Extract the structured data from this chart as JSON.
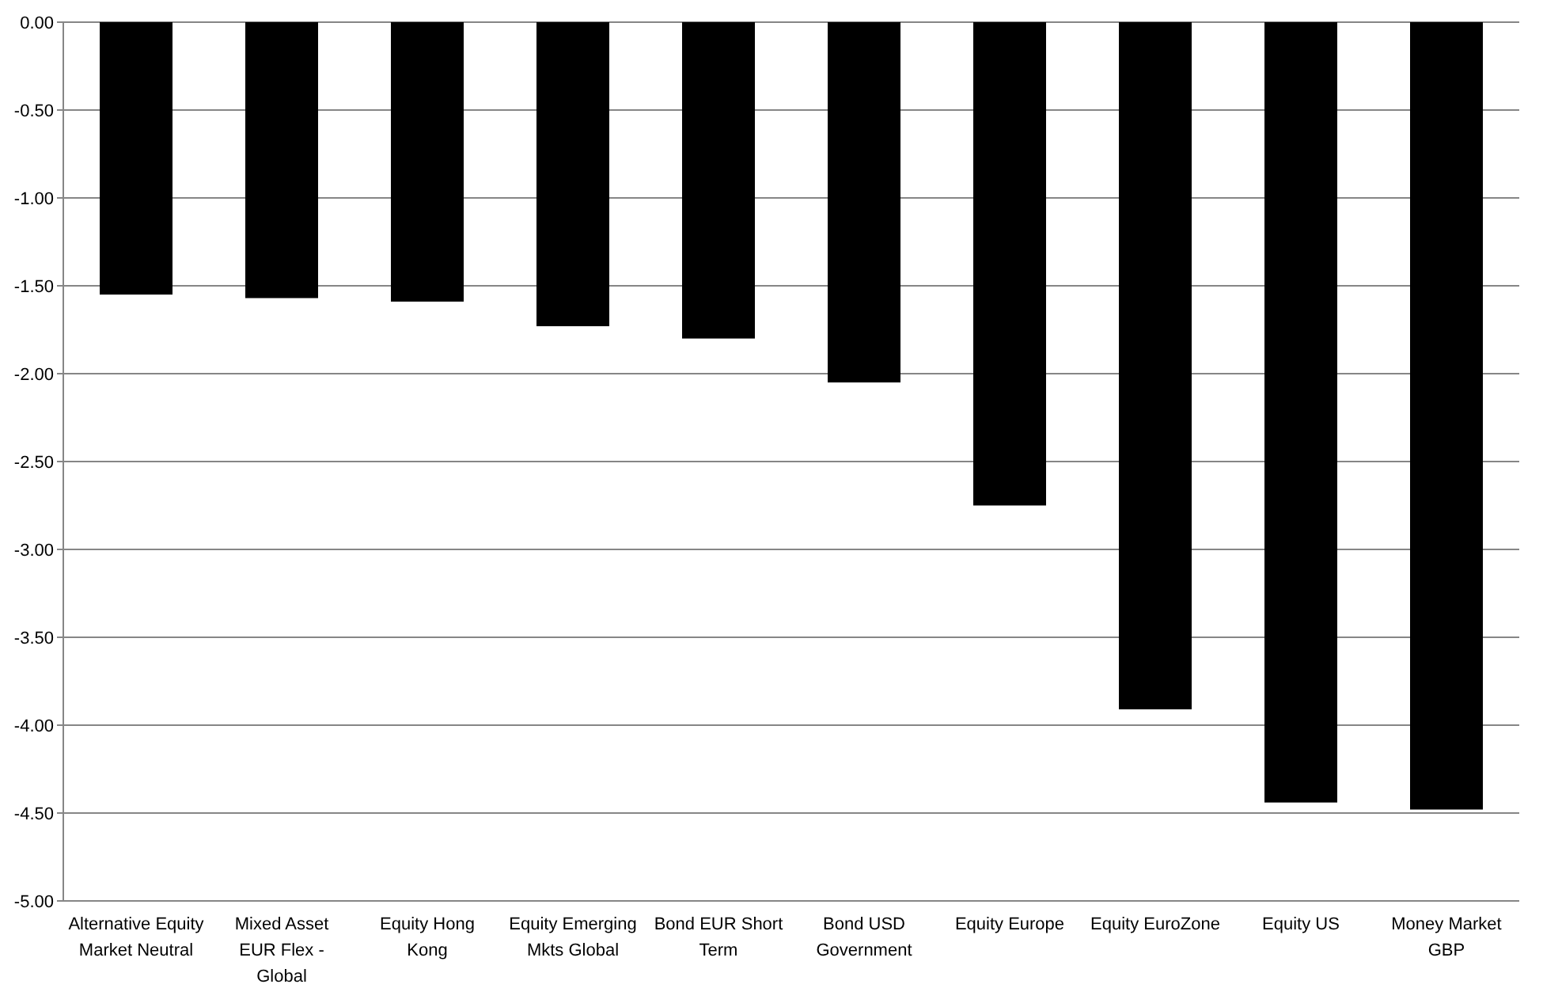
{
  "chart_data": {
    "type": "bar",
    "categories": [
      "Alternative Equity Market Neutral",
      "Mixed Asset EUR Flex - Global",
      "Equity Hong Kong",
      "Equity Emerging Mkts Global",
      "Bond EUR Short Term",
      "Bond USD Government",
      "Equity Europe",
      "Equity EuroZone",
      "Equity US",
      "Money Market GBP"
    ],
    "series": [
      {
        "color": "#000000",
        "values": [
          -1.55,
          -1.57,
          -1.59,
          -1.73,
          -1.8,
          -2.05,
          -2.75,
          -3.91,
          -4.44,
          -4.48
        ]
      }
    ],
    "ylim": [
      -5,
      0
    ],
    "yticks": [
      {
        "value": -5,
        "label": "-5.00"
      },
      {
        "value": -4.5,
        "label": "-4.50"
      },
      {
        "value": -4,
        "label": "-4.00"
      },
      {
        "value": -3.5,
        "label": "-3.50"
      },
      {
        "value": -3,
        "label": "-3.00"
      },
      {
        "value": -2.5,
        "label": "-2.50"
      },
      {
        "value": -2,
        "label": "-2.00"
      },
      {
        "value": -1.5,
        "label": "-1.50"
      },
      {
        "value": -1,
        "label": "-1.00"
      },
      {
        "value": -0.5,
        "label": "-0.50"
      },
      {
        "value": 0,
        "label": "0.00"
      }
    ],
    "grid": "y"
  }
}
